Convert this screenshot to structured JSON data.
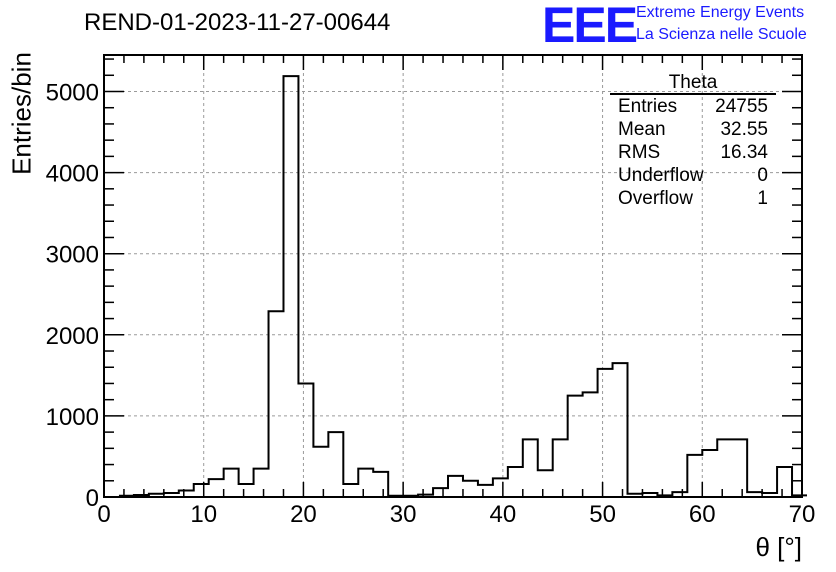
{
  "header": {
    "title": "REND-01-2023-11-27-00644",
    "logo_text": "EEE",
    "logo_line1": "Extreme Energy Events",
    "logo_line2": "La Scienza nelle Scuole"
  },
  "stats_box": {
    "title": "Theta",
    "rows": [
      {
        "label": "Entries",
        "value": "24755"
      },
      {
        "label": "Mean",
        "value": "32.55"
      },
      {
        "label": "RMS",
        "value": "16.34"
      },
      {
        "label": "Underflow",
        "value": "0"
      },
      {
        "label": "Overflow",
        "value": "1"
      }
    ]
  },
  "colors": {
    "line": "#000000",
    "grid": "#9a9a9a",
    "logo": "#1a1aff"
  },
  "chart_data": {
    "type": "bar",
    "style": "step-histogram",
    "xlabel": "θ [°]",
    "ylabel": "Entries/bin",
    "xlim": [
      0,
      70
    ],
    "ylim": [
      0,
      5450
    ],
    "grid": true,
    "legend": "top-right",
    "x_ticks": [
      0,
      10,
      20,
      30,
      40,
      50,
      60,
      70
    ],
    "y_ticks": [
      0,
      1000,
      2000,
      3000,
      4000,
      5000
    ],
    "bin_width": 1.5,
    "bin_start": 1.5,
    "values": [
      15,
      25,
      40,
      50,
      80,
      160,
      220,
      350,
      160,
      350,
      2290,
      5190,
      1400,
      620,
      800,
      160,
      350,
      310,
      15,
      15,
      30,
      110,
      260,
      200,
      150,
      230,
      370,
      710,
      330,
      710,
      1250,
      1290,
      1580,
      1650,
      40,
      50,
      20,
      60,
      520,
      580,
      710,
      710,
      60,
      50,
      370,
      20
    ]
  }
}
